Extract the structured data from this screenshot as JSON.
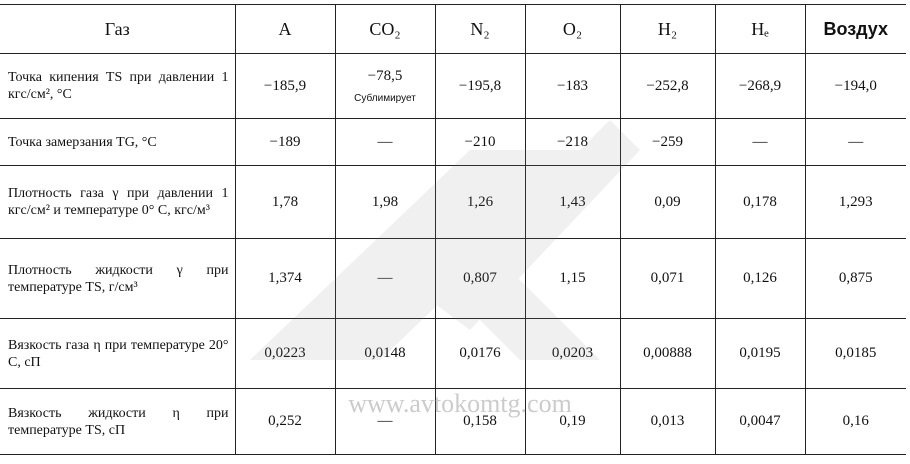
{
  "table": {
    "header": [
      "Газ",
      "A",
      "CO₂",
      "N₂",
      "O₂",
      "H₂",
      "Hₑ",
      "Воздух"
    ],
    "rows": [
      {
        "label": "Точка кипения TS при давлении 1 кгс/см², °C",
        "values": [
          "−185,9",
          "−78,5",
          "−195,8",
          "−183",
          "−252,8",
          "−268,9",
          "−194,0"
        ],
        "note": "Сублимирует"
      },
      {
        "label": "Точка замерзания TG, °C",
        "values": [
          "−189",
          "—",
          "−210",
          "−218",
          "−259",
          "—",
          "—"
        ]
      },
      {
        "label": "Плотность газа γ при давлении 1 кгс/см² и температуре 0° С, кгс/м³",
        "values": [
          "1,78",
          "1,98",
          "1,26",
          "1,43",
          "0,09",
          "0,178",
          "1,293"
        ]
      },
      {
        "label": "Плотность жидкости γ при температуре TS, г/см³",
        "values": [
          "1,374",
          "—",
          "0,807",
          "1,15",
          "0,071",
          "0,126",
          "0,875"
        ]
      },
      {
        "label": "Вязкость газа η при температуре 20° С, сП",
        "values": [
          "0,0223",
          "0,0148",
          "0,0176",
          "0,0203",
          "0,00888",
          "0,0195",
          "0,0185"
        ]
      },
      {
        "label": "Вязкость жидкости η при температуре TS, сП",
        "values": [
          "0,252",
          "—",
          "0,158",
          "0,19",
          "0,013",
          "0,0047",
          "0,16"
        ]
      }
    ]
  },
  "watermark": "www.avtokomtg.com"
}
